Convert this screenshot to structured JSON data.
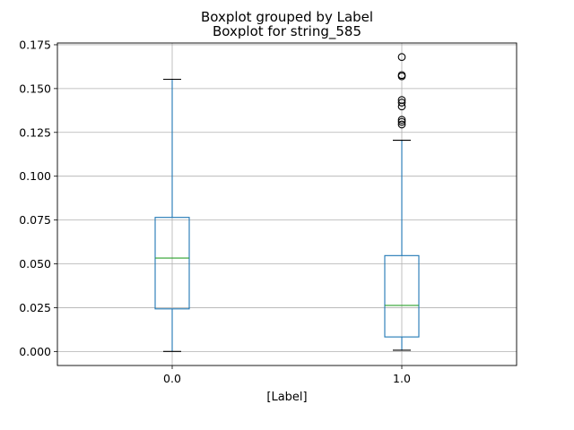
{
  "chart_data": {
    "type": "boxplot",
    "title": "Boxplot grouped by Label",
    "subtitle": "Boxplot for string_585",
    "xlabel": "[Label]",
    "ylabel": "",
    "categories": [
      "0.0",
      "1.0"
    ],
    "ylim": [
      -0.008,
      0.176
    ],
    "yticks": [
      0.0,
      0.025,
      0.05,
      0.075,
      0.1,
      0.125,
      0.15,
      0.175
    ],
    "ytick_labels": [
      "0.000",
      "0.025",
      "0.050",
      "0.075",
      "0.100",
      "0.125",
      "0.150",
      "0.175"
    ],
    "grid": true,
    "boxes": [
      {
        "category": "0.0",
        "whisker_low": 0.0,
        "q1": 0.0243,
        "median": 0.0533,
        "q3": 0.0765,
        "whisker_high": 0.1553,
        "outliers": []
      },
      {
        "category": "1.0",
        "whisker_low": 0.0007,
        "q1": 0.0083,
        "median": 0.0263,
        "q3": 0.0547,
        "whisker_high": 0.1205,
        "outliers": [
          0.1295,
          0.131,
          0.1322,
          0.1398,
          0.142,
          0.1435,
          0.157,
          0.1577,
          0.168
        ]
      }
    ],
    "colors": {
      "box": "#1f77b4",
      "median": "#2ca02c",
      "whisker": "#1f77b4",
      "cap": "#000000",
      "outlier": "#000000",
      "grid": "#b0b0b0"
    }
  }
}
